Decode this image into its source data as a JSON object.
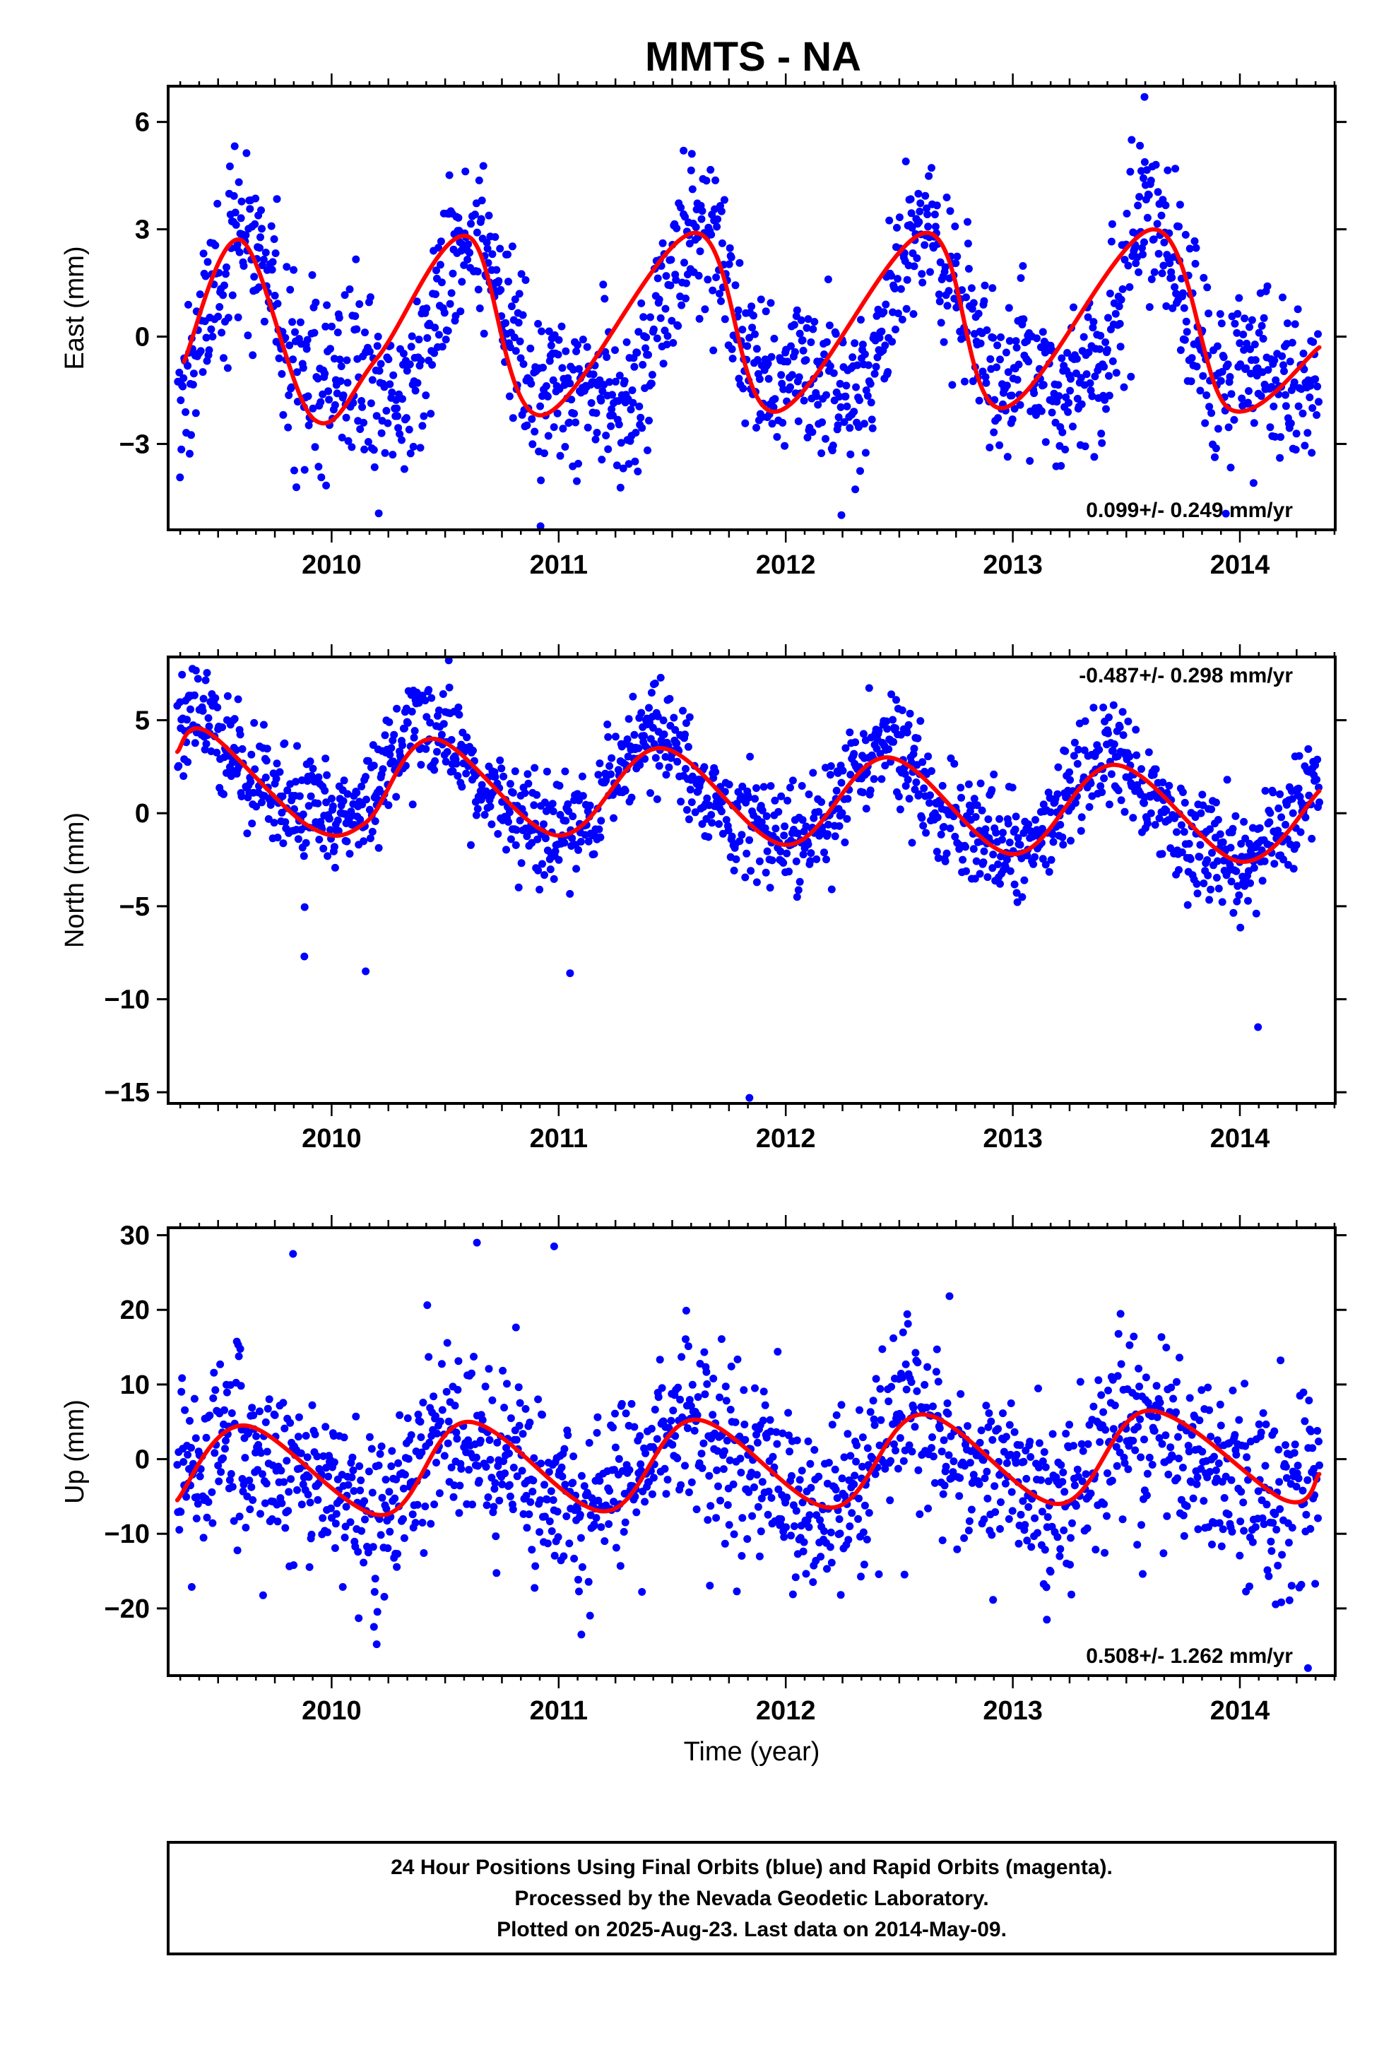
{
  "title": "MMTS - NA",
  "colors": {
    "final_points": "#0000ff",
    "model_curve": "#ff0000",
    "frame": "#000000"
  },
  "footer": {
    "line1": "24 Hour Positions Using Final Orbits (blue) and Rapid Orbits (magenta).",
    "line2": "Processed by the Nevada Geodetic Laboratory.",
    "line3": "Plotted on 2025-Aug-23. Last data on 2014-May-09."
  },
  "chart_data": [
    {
      "type": "scatter",
      "ylabel": "East (mm)",
      "xlabel": "",
      "xlim": [
        2009.28,
        2014.42
      ],
      "ylim": [
        -5.4,
        7.0
      ],
      "yticks": [
        -3,
        0,
        3,
        6
      ],
      "xticks": [
        2010,
        2011,
        2012,
        2013,
        2014
      ],
      "rate": "0.099+/- 0.249 mm/yr",
      "rate_position": "bottom-right",
      "data_range": [
        2009.32,
        2014.35
      ],
      "model": {
        "offset": 0.0,
        "trend": 0.099,
        "annual_amp": 2.0,
        "annual_peak": 0.62,
        "semi_amp": 1.0,
        "semi_peak": 0.1,
        "noise": 1.15
      },
      "outliers": [
        [
          2010.92,
          -5.3
        ],
        [
          2013.58,
          6.7
        ],
        [
          2011.55,
          5.2
        ]
      ],
      "sample_model_points": [
        {
          "x": 2009.35,
          "y": -0.7
        },
        {
          "x": 2009.6,
          "y": 2.7
        },
        {
          "x": 2009.92,
          "y": -2.3
        },
        {
          "x": 2010.2,
          "y": -0.6
        },
        {
          "x": 2010.6,
          "y": 2.8
        },
        {
          "x": 2010.92,
          "y": -2.2
        },
        {
          "x": 2011.6,
          "y": 2.9
        },
        {
          "x": 2011.95,
          "y": -2.1
        },
        {
          "x": 2012.62,
          "y": 2.9
        },
        {
          "x": 2012.95,
          "y": -2.0
        },
        {
          "x": 2013.62,
          "y": 3.0
        },
        {
          "x": 2013.95,
          "y": -2.0
        },
        {
          "x": 2014.35,
          "y": -0.3
        }
      ]
    },
    {
      "type": "scatter",
      "ylabel": "North (mm)",
      "xlabel": "",
      "xlim": [
        2009.28,
        2014.42
      ],
      "ylim": [
        -15.6,
        8.4
      ],
      "yticks": [
        -15,
        -10,
        -5,
        0,
        5
      ],
      "xticks": [
        2010,
        2011,
        2012,
        2013,
        2014
      ],
      "rate": "-0.487+/- 0.298 mm/yr",
      "rate_position": "top-right",
      "data_range": [
        2009.32,
        2014.35
      ],
      "model": {
        "offset": 1.0,
        "trend": -0.487,
        "annual_amp": 2.6,
        "annual_peak": 0.44,
        "semi_amp": 0.5,
        "semi_peak": 0.4,
        "noise": 1.4
      },
      "outliers": [
        [
          2011.84,
          -15.3
        ],
        [
          2014.08,
          -11.5
        ],
        [
          2010.15,
          -8.5
        ],
        [
          2011.05,
          -8.6
        ],
        [
          2009.88,
          -7.7
        ]
      ],
      "sample_model_points": [
        {
          "x": 2009.32,
          "y": 3.3
        },
        {
          "x": 2009.45,
          "y": 4.4
        },
        {
          "x": 2009.9,
          "y": -0.7
        },
        {
          "x": 2010.15,
          "y": -0.5
        },
        {
          "x": 2010.45,
          "y": 4.0
        },
        {
          "x": 2011.0,
          "y": -1.2
        },
        {
          "x": 2011.45,
          "y": 3.5
        },
        {
          "x": 2012.0,
          "y": -1.7
        },
        {
          "x": 2012.45,
          "y": 3.0
        },
        {
          "x": 2013.0,
          "y": -2.2
        },
        {
          "x": 2013.45,
          "y": 2.6
        },
        {
          "x": 2014.0,
          "y": -2.6
        },
        {
          "x": 2014.35,
          "y": 1.2
        }
      ]
    },
    {
      "type": "scatter",
      "ylabel": "Up (mm)",
      "xlabel": "Time (year)",
      "xlim": [
        2009.28,
        2014.42
      ],
      "ylim": [
        -29.0,
        31.0
      ],
      "yticks": [
        -20,
        -10,
        0,
        10,
        20,
        30
      ],
      "xticks": [
        2010,
        2011,
        2012,
        2013,
        2014
      ],
      "rate": "0.508+/- 1.262 mm/yr",
      "rate_position": "bottom-right",
      "data_range": [
        2009.32,
        2014.35
      ],
      "model": {
        "offset": -1.0,
        "trend": 0.508,
        "annual_amp": 5.0,
        "annual_peak": 0.6,
        "semi_amp": 1.5,
        "semi_peak": 0.0,
        "noise": 6.0
      },
      "outliers": [
        [
          2010.64,
          29.0
        ],
        [
          2010.98,
          28.5
        ],
        [
          2009.83,
          27.5
        ],
        [
          2014.3,
          -28.0
        ],
        [
          2011.1,
          -23.5
        ],
        [
          2013.15,
          -21.5
        ]
      ],
      "sample_model_points": [
        {
          "x": 2009.32,
          "y": -5.5
        },
        {
          "x": 2009.62,
          "y": 4.5
        },
        {
          "x": 2010.22,
          "y": -7.5
        },
        {
          "x": 2010.6,
          "y": 5.0
        },
        {
          "x": 2011.2,
          "y": -7.0
        },
        {
          "x": 2011.6,
          "y": 5.3
        },
        {
          "x": 2012.2,
          "y": -6.5
        },
        {
          "x": 2012.6,
          "y": 6.0
        },
        {
          "x": 2013.2,
          "y": -6.0
        },
        {
          "x": 2013.6,
          "y": 6.5
        },
        {
          "x": 2014.2,
          "y": -5.5
        },
        {
          "x": 2014.35,
          "y": -2.0
        }
      ]
    }
  ]
}
